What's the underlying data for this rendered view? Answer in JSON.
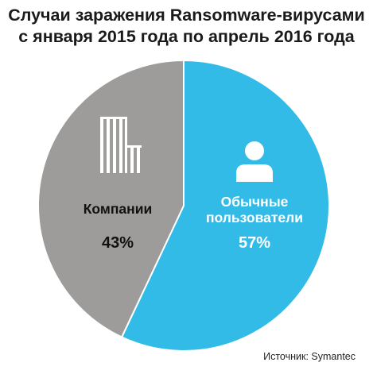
{
  "title_lines": [
    "Случаи заражения Ransomware-вирусами",
    "с января 2015 года по апрель 2016 года"
  ],
  "source": "Источник: Symantec",
  "colors": {
    "consumers": "#33bbe8",
    "companies": "#9d9c9b",
    "label_on_blue": "#ffffff",
    "label_on_gray": "#111111"
  },
  "icons": {
    "consumers": "person-icon",
    "companies": "building-icon"
  },
  "chart_data": {
    "type": "pie",
    "title": "Случаи заражения Ransomware-вирусами с января 2015 года по апрель 2016 года",
    "slices": [
      {
        "label_lines": [
          "Обычные",
          "пользователи"
        ],
        "value": 57,
        "value_label": "57%"
      },
      {
        "label_lines": [
          "Компании"
        ],
        "value": 43,
        "value_label": "43%"
      }
    ]
  }
}
